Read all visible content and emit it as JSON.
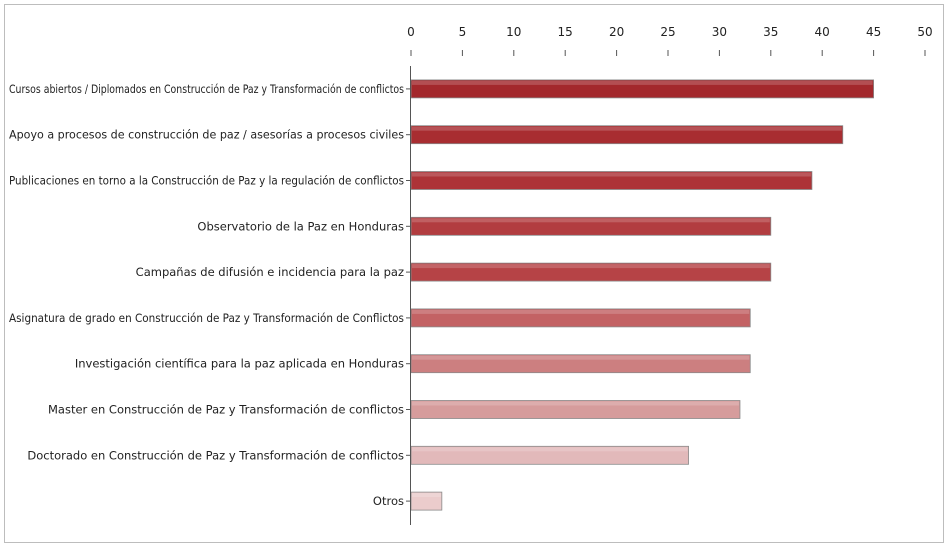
{
  "chart_data": {
    "type": "bar",
    "orientation": "horizontal",
    "title": "",
    "xlabel": "",
    "ylabel": "",
    "xlim": [
      0,
      50
    ],
    "xticks": [
      0,
      5,
      10,
      15,
      20,
      25,
      30,
      35,
      40,
      45,
      50
    ],
    "grid": false,
    "legend": "none",
    "categories": [
      "Cursos abiertos / Diplomados en Construcción de Paz y Transformación de conflictos",
      "Apoyo a procesos de construcción de paz / asesorías a procesos civiles",
      "Publicaciones en torno a la Construcción de Paz y la regulación de conflictos",
      "Observatorio de la Paz en Honduras",
      "Campañas de difusión e incidencia para la paz",
      "Asignatura de grado en Construcción de Paz y Transformación de Conflictos",
      "Investigación científica para la paz aplicada en Honduras",
      "Master en Construcción de Paz y Transformación de conflictos",
      "Doctorado en Construcción de Paz y Transformación de conflictos",
      "Otros"
    ],
    "values": [
      45,
      42,
      39,
      35,
      35,
      33,
      33,
      32,
      27,
      3
    ],
    "bar_colors": [
      "#a3282c",
      "#a82d31",
      "#ad3337",
      "#b23d40",
      "#b64346",
      "#c36264",
      "#cc7f80",
      "#d69c9c",
      "#e2b9ba",
      "#ebcccc"
    ]
  }
}
